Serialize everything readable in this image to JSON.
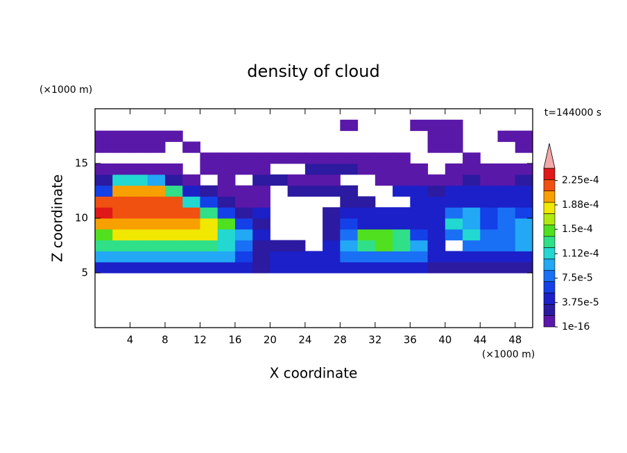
{
  "chart_data": {
    "type": "contour",
    "title": "density of cloud",
    "x_label": "X coordinate",
    "y_label": "Z coordinate",
    "x_unit": "(×1000 m)",
    "y_unit": "(×1000 m)",
    "annotation": "t=144000 s",
    "xlim": [
      0,
      50
    ],
    "ylim": [
      0,
      20
    ],
    "xticks": [
      4,
      8,
      12,
      16,
      20,
      24,
      28,
      32,
      36,
      40,
      44,
      48
    ],
    "yticks": [
      5,
      10,
      15
    ],
    "x": [
      1,
      3,
      5,
      7,
      9,
      11,
      13,
      15,
      17,
      19,
      21,
      23,
      25,
      27,
      29,
      31,
      33,
      35,
      37,
      39,
      41,
      43,
      45,
      47,
      49
    ],
    "z": [
      5.5,
      6.5,
      7.5,
      8.5,
      9.5,
      10.5,
      11.5,
      12.5,
      13.5,
      14.5,
      15.5,
      16.5,
      17.5,
      18.5
    ],
    "values": [
      [
        5e-05,
        5e-05,
        5e-05,
        5e-05,
        5e-05,
        5e-05,
        5e-05,
        5e-05,
        5e-05,
        3e-05,
        4e-05,
        4e-05,
        4e-05,
        4e-05,
        4e-05,
        4e-05,
        4e-05,
        4e-05,
        4e-05,
        3e-05,
        3e-05,
        3e-05,
        3e-05,
        3e-05,
        3e-05
      ],
      [
        9e-05,
        9e-05,
        9e-05,
        9e-05,
        9e-05,
        9e-05,
        9e-05,
        9e-05,
        6e-05,
        2e-05,
        5e-05,
        5e-05,
        5e-05,
        5e-05,
        8e-05,
        8e-05,
        8e-05,
        8e-05,
        8e-05,
        5e-05,
        5e-05,
        5e-05,
        5e-05,
        5e-05,
        5e-05
      ],
      [
        0.00013,
        0.00013,
        0.00013,
        0.00013,
        0.00013,
        0.00013,
        0.00013,
        0.00011,
        7e-05,
        3e-05,
        3e-05,
        2e-05,
        null,
        4e-05,
        9e-05,
        0.00013,
        0.00014,
        0.00013,
        9e-05,
        5e-05,
        null,
        7e-05,
        8e-05,
        7e-05,
        0.0001
      ],
      [
        0.00015,
        0.00018,
        0.00018,
        0.00018,
        0.00018,
        0.00018,
        0.00018,
        0.00012,
        9e-05,
        4e-05,
        null,
        null,
        null,
        3e-05,
        7e-05,
        0.00014,
        0.00015,
        0.00013,
        6e-05,
        4e-05,
        8e-05,
        0.00011,
        7e-05,
        8e-05,
        9e-05
      ],
      [
        0.0002,
        0.0002,
        0.0002,
        0.0002,
        0.0002,
        0.0002,
        0.00019,
        0.00015,
        6e-05,
        3e-05,
        null,
        null,
        null,
        3e-05,
        6e-05,
        5e-05,
        5e-05,
        5e-05,
        5e-05,
        5e-05,
        0.00011,
        9e-05,
        6e-05,
        8e-05,
        0.0001
      ],
      [
        0.00023,
        0.00021,
        0.00021,
        0.00021,
        0.00021,
        0.00021,
        0.00013,
        6e-05,
        2e-05,
        4e-05,
        null,
        null,
        null,
        2e-05,
        4e-05,
        4e-05,
        4e-05,
        4e-05,
        4e-05,
        4e-05,
        8e-05,
        9e-05,
        6e-05,
        7e-05,
        6e-05
      ],
      [
        0.00021,
        0.00021,
        0.00021,
        0.00021,
        0.00021,
        0.00011,
        6e-05,
        3e-05,
        1e-05,
        1e-05,
        null,
        null,
        null,
        null,
        3e-05,
        2e-05,
        null,
        null,
        5e-05,
        5e-05,
        5e-05,
        5e-05,
        5e-05,
        5e-05,
        5e-05
      ],
      [
        6e-05,
        0.0002,
        0.0002,
        0.0002,
        0.00013,
        5e-05,
        3e-05,
        1e-05,
        1e-05,
        1e-05,
        null,
        2e-05,
        2e-05,
        2e-05,
        2e-05,
        null,
        null,
        4e-05,
        5e-05,
        3e-05,
        4e-05,
        5e-05,
        4e-05,
        5e-05,
        4e-05
      ],
      [
        3e-05,
        0.00011,
        0.00012,
        9e-05,
        2e-05,
        1e-05,
        null,
        1e-05,
        null,
        2e-05,
        2e-05,
        1e-05,
        1e-05,
        1e-05,
        null,
        null,
        1e-05,
        1e-05,
        1e-05,
        1e-05,
        1e-05,
        2e-05,
        1e-05,
        1e-05,
        2e-05
      ],
      [
        1e-05,
        1e-05,
        1e-05,
        1e-05,
        1e-05,
        null,
        1e-05,
        1e-05,
        1e-05,
        1e-05,
        null,
        null,
        2e-05,
        3e-05,
        2e-05,
        1e-05,
        1e-05,
        1e-05,
        1e-05,
        null,
        1e-05,
        1e-05,
        1e-05,
        1e-05,
        1e-05
      ],
      [
        null,
        null,
        null,
        null,
        null,
        null,
        1e-05,
        1e-05,
        1e-05,
        1e-05,
        1e-05,
        1e-05,
        1e-05,
        1e-05,
        1e-05,
        1e-05,
        1e-05,
        1e-05,
        null,
        null,
        null,
        1e-05,
        null,
        null,
        null
      ],
      [
        1e-05,
        1e-05,
        1e-05,
        1e-05,
        null,
        1e-05,
        null,
        null,
        null,
        null,
        null,
        null,
        null,
        null,
        null,
        null,
        null,
        null,
        null,
        1e-05,
        1e-05,
        null,
        null,
        null,
        1e-05
      ],
      [
        1e-05,
        1e-05,
        1e-05,
        1e-05,
        1e-05,
        null,
        null,
        null,
        null,
        null,
        null,
        null,
        null,
        null,
        null,
        null,
        null,
        null,
        null,
        1e-05,
        1e-05,
        null,
        null,
        1e-05,
        1e-05
      ],
      [
        null,
        null,
        null,
        null,
        null,
        null,
        null,
        null,
        null,
        null,
        null,
        null,
        null,
        null,
        1e-05,
        null,
        null,
        null,
        1e-05,
        1e-05,
        1e-05,
        null,
        null,
        null,
        null
      ]
    ],
    "colorbar": {
      "lim": [
        1e-16,
        0.00024375
      ],
      "ticks": [
        {
          "value": 1e-16,
          "label": "1e-16"
        },
        {
          "value": 3.75e-05,
          "label": "3.75e-5"
        },
        {
          "value": 7.5e-05,
          "label": "7.5e-5"
        },
        {
          "value": 0.0001125,
          "label": "1.12e-4"
        },
        {
          "value": 0.00015,
          "label": "1.5e-4"
        },
        {
          "value": 0.0001875,
          "label": "1.88e-4"
        },
        {
          "value": 0.000225,
          "label": "2.25e-4"
        }
      ],
      "colors": [
        "#5a18a8",
        "#2c1aa0",
        "#1c20c8",
        "#1440e8",
        "#1a70f4",
        "#22a8f4",
        "#22d8d0",
        "#30e088",
        "#50e020",
        "#b0e810",
        "#f0e800",
        "#f8a000",
        "#f05010",
        "#e01818"
      ],
      "over_color": "#f4a8a8"
    }
  }
}
